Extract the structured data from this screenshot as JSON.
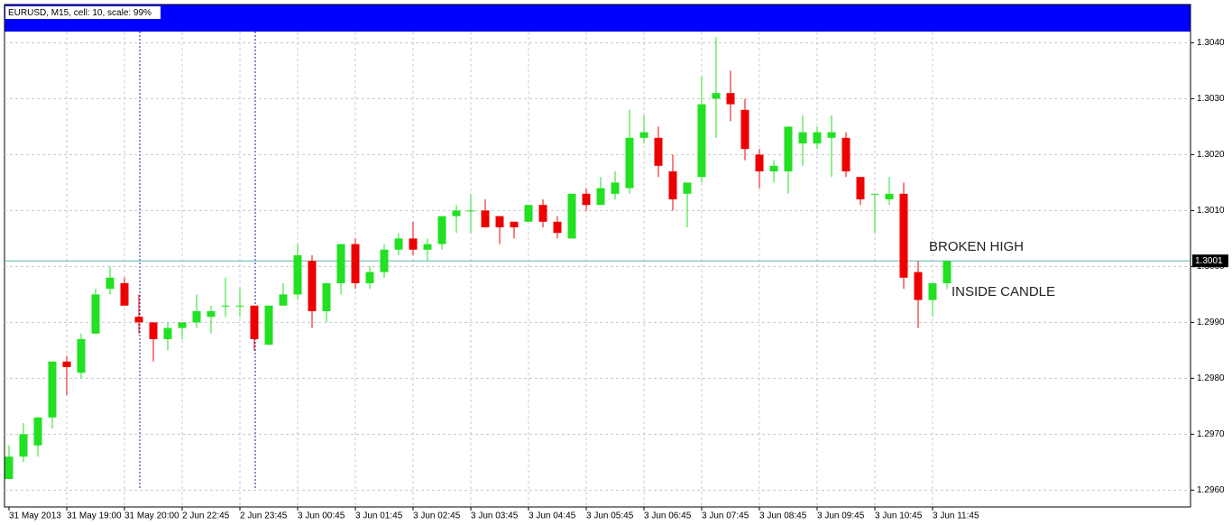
{
  "chart_data": {
    "type": "candlestick",
    "title": "EURUSD, M15, cell: 10, scale: 99%",
    "categories": [
      "31 May 2013",
      null,
      null,
      null,
      "31 May 19:00",
      null,
      null,
      null,
      "31 May 20:00",
      null,
      null,
      null,
      "2 Jun 22:45",
      null,
      null,
      null,
      "2 Jun 23:45",
      null,
      null,
      null,
      "3 Jun 00:45",
      null,
      null,
      null,
      "3 Jun 01:45",
      null,
      null,
      null,
      "3 Jun 02:45",
      null,
      null,
      null,
      "3 Jun 03:45",
      null,
      null,
      null,
      "3 Jun 04:45",
      null,
      null,
      null,
      "3 Jun 05:45",
      null,
      null,
      null,
      "3 Jun 06:45",
      null,
      null,
      null,
      "3 Jun 07:45",
      null,
      null,
      null,
      "3 Jun 08:45",
      null,
      null,
      null,
      "3 Jun 09:45",
      null,
      null,
      null,
      "3 Jun 10:45",
      null,
      null,
      null,
      "3 Jun 11:45",
      null
    ],
    "open": [
      1.2962,
      1.2966,
      1.2968,
      1.2973,
      1.2983,
      1.2981,
      1.2988,
      1.2996,
      1.2997,
      1.2991,
      1.299,
      1.2987,
      1.2989,
      1.299,
      1.2991,
      1.2993,
      1.2993,
      1.2993,
      1.2986,
      1.2993,
      1.2995,
      1.3001,
      1.2992,
      1.2997,
      1.3004,
      1.2997,
      1.2999,
      1.3003,
      1.3005,
      1.3003,
      1.3004,
      1.3009,
      1.301,
      1.301,
      1.3009,
      1.3008,
      1.3008,
      1.3011,
      1.3008,
      1.3005,
      1.3013,
      1.3011,
      1.3013,
      1.3014,
      1.3023,
      1.3023,
      1.3017,
      1.3013,
      1.3016,
      1.303,
      1.3031,
      1.3028,
      1.302,
      1.3017,
      1.3017,
      1.3022,
      1.3022,
      1.3023,
      1.3023,
      1.3016,
      1.3013,
      1.3012,
      1.3013,
      1.2999,
      1.2994,
      1.2997
    ],
    "high": [
      1.2968,
      1.2972,
      1.2973,
      1.2983,
      1.2984,
      1.2988,
      1.2996,
      1.3,
      1.2998,
      1.2995,
      1.299,
      1.299,
      1.299,
      1.2995,
      1.2993,
      1.2998,
      1.2996,
      1.2993,
      1.2993,
      1.2997,
      1.3004,
      1.3002,
      1.2997,
      1.3004,
      1.3005,
      1.3,
      1.3004,
      1.3006,
      1.3008,
      1.3005,
      1.3009,
      1.3011,
      1.3013,
      1.3012,
      1.3009,
      1.3008,
      1.3011,
      1.3012,
      1.3009,
      1.3013,
      1.3014,
      1.3016,
      1.3017,
      1.3028,
      1.3027,
      1.3025,
      1.302,
      1.3015,
      1.3034,
      1.3041,
      1.3035,
      1.303,
      1.3021,
      1.3019,
      1.3025,
      1.3027,
      1.3025,
      1.3027,
      1.3024,
      1.3016,
      1.3013,
      1.3016,
      1.3015,
      1.3001,
      1.2997,
      1.3001
    ],
    "low": [
      1.2962,
      1.2965,
      1.2966,
      1.2971,
      1.2977,
      1.298,
      1.2988,
      1.2995,
      1.2993,
      1.2988,
      1.2983,
      1.2985,
      1.2987,
      1.2989,
      1.2988,
      1.2991,
      1.2991,
      1.2985,
      1.2986,
      1.2993,
      1.2994,
      1.2989,
      1.299,
      1.2995,
      1.2996,
      1.2996,
      1.2998,
      1.3002,
      1.3002,
      1.3001,
      1.3003,
      1.3006,
      1.3006,
      1.3007,
      1.3004,
      1.3005,
      1.3008,
      1.3007,
      1.3005,
      1.3005,
      1.301,
      1.3011,
      1.3012,
      1.3013,
      1.3022,
      1.3016,
      1.301,
      1.3007,
      1.3015,
      1.3023,
      1.3026,
      1.3019,
      1.3014,
      1.3015,
      1.3013,
      1.3018,
      1.3021,
      1.3016,
      1.3016,
      1.3011,
      1.3006,
      1.3011,
      1.2996,
      1.2989,
      1.2991,
      1.2996
    ],
    "close": [
      1.2966,
      1.297,
      1.2973,
      1.2983,
      1.2982,
      1.2987,
      1.2995,
      1.2998,
      1.2993,
      1.299,
      1.2987,
      1.2989,
      1.299,
      1.2992,
      1.2992,
      1.2993,
      1.2993,
      1.2987,
      1.2993,
      1.2995,
      1.3002,
      1.2992,
      1.2997,
      1.3004,
      1.2997,
      1.2999,
      1.3003,
      1.3005,
      1.3003,
      1.3004,
      1.3009,
      1.301,
      1.301,
      1.3007,
      1.3007,
      1.3007,
      1.3011,
      1.3008,
      1.3006,
      1.3013,
      1.3011,
      1.3014,
      1.3015,
      1.3023,
      1.3024,
      1.3018,
      1.3012,
      1.3015,
      1.3029,
      1.3031,
      1.3029,
      1.3021,
      1.3017,
      1.3018,
      1.3025,
      1.3024,
      1.3024,
      1.3024,
      1.3017,
      1.3012,
      1.3013,
      1.3013,
      1.2998,
      1.2994,
      1.2997,
      1.3001
    ],
    "up_color": "#22e022",
    "down_color": "#ee0000",
    "ylim": [
      1.2957,
      1.3042
    ],
    "yticks": [
      {
        "value": 1.296,
        "label": "1.2960"
      },
      {
        "value": 1.297,
        "label": "1.2970"
      },
      {
        "value": 1.298,
        "label": "1.2980"
      },
      {
        "value": 1.299,
        "label": "1.2990"
      },
      {
        "value": 1.3,
        "label": "1.3000"
      },
      {
        "value": 1.301,
        "label": "1.3010"
      },
      {
        "value": 1.302,
        "label": "1.3020"
      },
      {
        "value": 1.303,
        "label": "1.3030"
      },
      {
        "value": 1.304,
        "label": "1.3040"
      }
    ],
    "current_price": 1.3001,
    "grid": true,
    "annotations": [
      "BROKEN HIGH",
      "INSIDE CANDLE"
    ]
  }
}
